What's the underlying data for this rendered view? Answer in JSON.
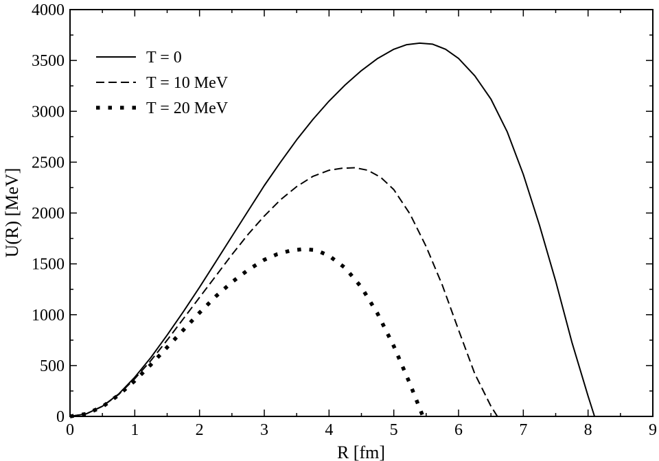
{
  "chart_data": {
    "type": "line",
    "title": "",
    "xlabel": "R [fm]",
    "ylabel": "U(R) [MeV]",
    "xlim": [
      0,
      9
    ],
    "ylim": [
      0,
      4000
    ],
    "xticks": [
      0,
      1,
      2,
      3,
      4,
      5,
      6,
      7,
      8,
      9
    ],
    "yticks": [
      0,
      500,
      1000,
      1500,
      2000,
      2500,
      3000,
      3500,
      4000
    ],
    "grid": false,
    "legend_position": "top-left",
    "series": [
      {
        "name": "T = 0",
        "style": "solid",
        "x": [
          0,
          0.25,
          0.5,
          0.75,
          1.0,
          1.25,
          1.5,
          1.75,
          2.0,
          2.25,
          2.5,
          2.75,
          3.0,
          3.25,
          3.5,
          3.75,
          4.0,
          4.25,
          4.5,
          4.75,
          5.0,
          5.2,
          5.4,
          5.6,
          5.8,
          6.0,
          6.25,
          6.5,
          6.75,
          7.0,
          7.25,
          7.5,
          7.75,
          8.0,
          8.1
        ],
        "y": [
          0,
          25,
          100,
          220,
          385,
          580,
          800,
          1030,
          1270,
          1520,
          1770,
          2020,
          2270,
          2500,
          2720,
          2920,
          3100,
          3260,
          3400,
          3520,
          3610,
          3655,
          3670,
          3660,
          3610,
          3520,
          3350,
          3120,
          2800,
          2380,
          1880,
          1330,
          730,
          200,
          0
        ]
      },
      {
        "name": "T = 10 MeV",
        "style": "dashed",
        "x": [
          0,
          0.25,
          0.5,
          0.75,
          1.0,
          1.25,
          1.5,
          1.75,
          2.0,
          2.25,
          2.5,
          2.75,
          3.0,
          3.25,
          3.5,
          3.75,
          4.0,
          4.2,
          4.4,
          4.6,
          4.8,
          5.0,
          5.25,
          5.5,
          5.75,
          6.0,
          6.25,
          6.5,
          6.6
        ],
        "y": [
          0,
          25,
          100,
          215,
          370,
          550,
          750,
          960,
          1170,
          1380,
          1590,
          1790,
          1970,
          2130,
          2260,
          2360,
          2420,
          2440,
          2445,
          2420,
          2350,
          2230,
          1990,
          1670,
          1290,
          850,
          420,
          100,
          0
        ]
      },
      {
        "name": "T = 20 MeV",
        "style": "dotted",
        "x": [
          0,
          0.25,
          0.5,
          0.75,
          1.0,
          1.25,
          1.5,
          1.75,
          2.0,
          2.25,
          2.5,
          2.75,
          3.0,
          3.2,
          3.4,
          3.6,
          3.8,
          4.0,
          4.25,
          4.5,
          4.75,
          5.0,
          5.25,
          5.45
        ],
        "y": [
          0,
          25,
          95,
          210,
          350,
          510,
          680,
          850,
          1020,
          1180,
          1320,
          1440,
          1540,
          1595,
          1630,
          1645,
          1635,
          1580,
          1460,
          1270,
          1010,
          690,
          320,
          0
        ]
      }
    ]
  }
}
